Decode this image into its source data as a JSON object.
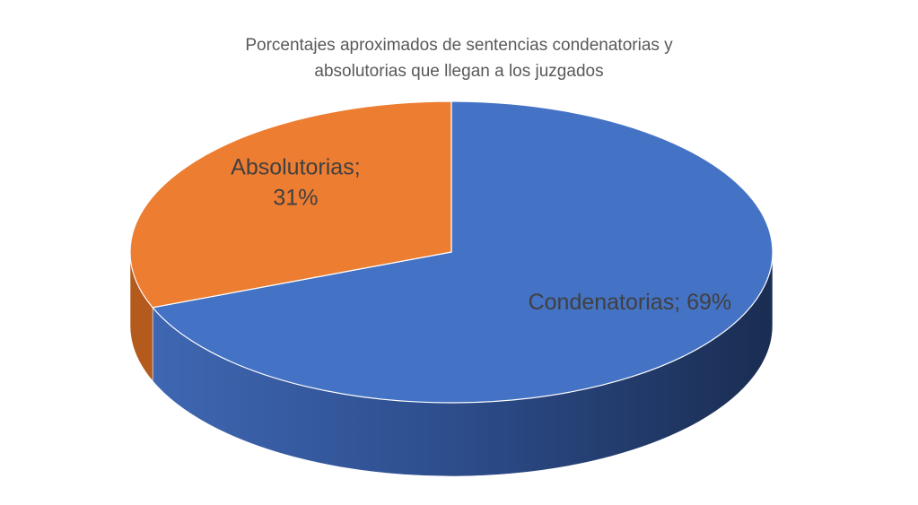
{
  "chart_data": {
    "type": "pie",
    "title_lines": [
      "Porcentajes aproximados de sentencias condenatorias y",
      "absolutorias que llegan a los juzgados"
    ],
    "slices": [
      {
        "name": "Condenatorias",
        "value": 69,
        "color": "#4472c4",
        "side_color": "#2f5092",
        "label_lines": [
          "Condenatorias; 69%"
        ]
      },
      {
        "name": "Absolutorias",
        "value": 31,
        "color": "#ed7d31",
        "side_color": "#b35a1c",
        "label_lines": [
          "Absolutorias;",
          "31%"
        ]
      }
    ],
    "legend": "none",
    "three_d": true
  }
}
